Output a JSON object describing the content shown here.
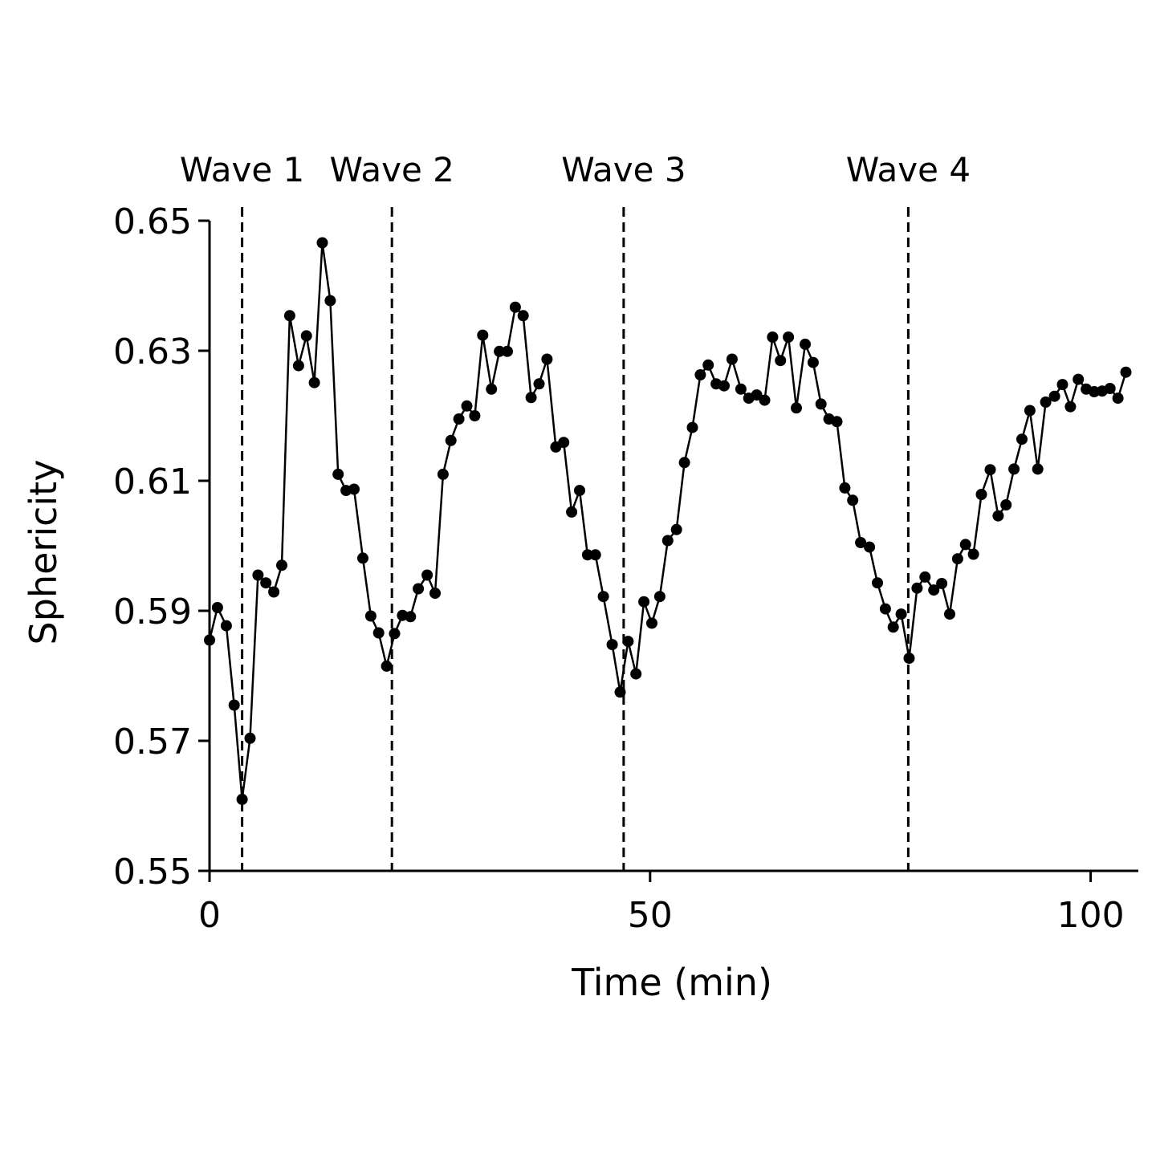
{
  "chart_data": {
    "type": "line",
    "title": "",
    "xlabel": "Time (min)",
    "ylabel": "Sphericity",
    "xlim": [
      0,
      105
    ],
    "ylim": [
      0.55,
      0.65
    ],
    "xticks": [
      0,
      50,
      100
    ],
    "xtick_labels": [
      "0",
      "50",
      "100"
    ],
    "yticks": [
      0.55,
      0.57,
      0.59,
      0.61,
      0.63,
      0.65
    ],
    "ytick_labels": [
      "0.55",
      "0.57",
      "0.59",
      "0.61",
      "0.63",
      "0.65"
    ],
    "grid": false,
    "legend": "none",
    "colors": {
      "line": "#000000",
      "marker": "#000000",
      "axis": "#000000"
    },
    "annotations": [
      {
        "label": "Wave 1",
        "x": 3.7
      },
      {
        "label": "Wave 2",
        "x": 20.7
      },
      {
        "label": "Wave 3",
        "x": 47.0
      },
      {
        "label": "Wave 4",
        "x": 79.3
      }
    ],
    "series": [
      {
        "name": "Sphericity",
        "x": [
          0,
          0.9,
          1.9,
          2.8,
          3.7,
          4.6,
          5.5,
          6.4,
          7.3,
          8.2,
          9.1,
          10.1,
          11.0,
          11.9,
          12.8,
          13.7,
          14.6,
          15.5,
          16.4,
          17.4,
          18.3,
          19.2,
          20.1,
          21.0,
          21.9,
          22.8,
          23.7,
          24.7,
          25.6,
          26.5,
          27.4,
          28.3,
          29.2,
          30.1,
          31.0,
          32.0,
          32.9,
          33.8,
          34.7,
          35.6,
          36.5,
          37.4,
          38.3,
          39.3,
          40.2,
          41.1,
          42.0,
          42.9,
          43.8,
          44.7,
          45.7,
          46.6,
          47.5,
          48.4,
          49.3,
          50.2,
          51.1,
          52.0,
          53.0,
          53.9,
          54.8,
          55.7,
          56.6,
          57.5,
          58.4,
          59.3,
          60.3,
          61.2,
          62.1,
          63.0,
          63.9,
          64.8,
          65.7,
          66.6,
          67.6,
          68.5,
          69.4,
          70.3,
          71.2,
          72.1,
          73.0,
          73.9,
          74.9,
          75.8,
          76.7,
          77.6,
          78.5,
          79.4,
          80.3,
          81.2,
          82.2,
          83.1,
          84.0,
          84.9,
          85.8,
          86.7,
          87.6,
          88.6,
          89.5,
          90.4,
          91.3,
          92.2,
          93.1,
          94.0,
          94.9,
          95.9,
          96.8,
          97.7,
          98.6,
          99.5,
          100.4,
          101.3,
          102.2,
          103.1,
          104.0
        ],
        "values": [
          0.5855,
          0.5905,
          0.5877,
          0.5755,
          0.561,
          0.5704,
          0.5955,
          0.5943,
          0.5929,
          0.597,
          0.6354,
          0.6277,
          0.6323,
          0.6251,
          0.6466,
          0.6377,
          0.611,
          0.6085,
          0.6087,
          0.5981,
          0.5892,
          0.5866,
          0.5815,
          0.5865,
          0.5893,
          0.5891,
          0.5934,
          0.5955,
          0.5927,
          0.611,
          0.6162,
          0.6195,
          0.6215,
          0.62,
          0.6324,
          0.6241,
          0.6299,
          0.6299,
          0.6367,
          0.6354,
          0.6228,
          0.6249,
          0.6287,
          0.6152,
          0.6159,
          0.6052,
          0.6085,
          0.5986,
          0.5986,
          0.5922,
          0.5848,
          0.5775,
          0.5853,
          0.5803,
          0.5914,
          0.5881,
          0.5922,
          0.6008,
          0.6025,
          0.6128,
          0.6182,
          0.6263,
          0.6278,
          0.6249,
          0.6246,
          0.6287,
          0.6241,
          0.6227,
          0.6232,
          0.6224,
          0.6321,
          0.6285,
          0.6321,
          0.6212,
          0.631,
          0.6282,
          0.6218,
          0.6195,
          0.6191,
          0.6089,
          0.607,
          0.6005,
          0.5998,
          0.5943,
          0.5903,
          0.5875,
          0.5895,
          0.5827,
          0.5935,
          0.5952,
          0.5932,
          0.5942,
          0.5895,
          0.598,
          0.6002,
          0.5987,
          0.6079,
          0.6117,
          0.6046,
          0.6063,
          0.6118,
          0.6164,
          0.6208,
          0.6118,
          0.6221,
          0.623,
          0.6248,
          0.6214,
          0.6256,
          0.6241,
          0.6237,
          0.6238,
          0.6242,
          0.6227,
          0.6267
        ]
      }
    ]
  }
}
